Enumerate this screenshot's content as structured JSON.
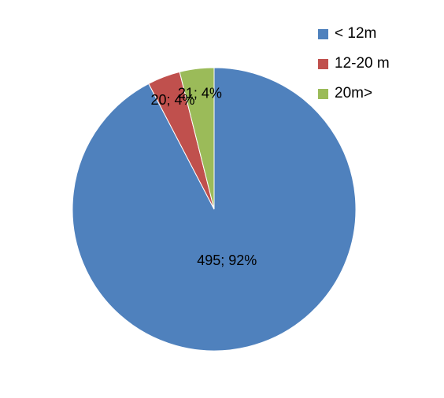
{
  "chart_data": {
    "type": "pie",
    "title": "",
    "legend_position": "top-right",
    "slices": [
      {
        "label": "< 12m",
        "value": 495,
        "percent": "92%",
        "data_label": "495; 92%",
        "color": "#4F81BD"
      },
      {
        "label": "12-20 m",
        "value": 20,
        "percent": "4%",
        "data_label": "20; 4%",
        "color": "#C0504D"
      },
      {
        "label": "20m>",
        "value": 21,
        "percent": "4%",
        "data_label": "21; 4%",
        "color": "#9BBB59"
      }
    ]
  }
}
